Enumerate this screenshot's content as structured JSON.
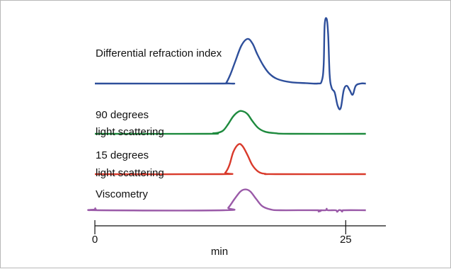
{
  "chart_data": {
    "type": "line",
    "xlabel": "min",
    "x_ticks": [
      0,
      25
    ],
    "xlim": [
      0,
      29
    ],
    "grid": false,
    "series": [
      {
        "name": "Differential refraction index",
        "color": "#2e4f9b",
        "points": [
          [
            0,
            0
          ],
          [
            12.8,
            0
          ],
          [
            13.1,
            0.02
          ],
          [
            13.5,
            0.2
          ],
          [
            14,
            0.5
          ],
          [
            14.6,
            0.85
          ],
          [
            15.2,
            1.0
          ],
          [
            15.7,
            0.9
          ],
          [
            16.2,
            0.65
          ],
          [
            16.8,
            0.4
          ],
          [
            17.4,
            0.22
          ],
          [
            18.2,
            0.1
          ],
          [
            19.5,
            0.03
          ],
          [
            21,
            0.01
          ],
          [
            22.2,
            0
          ],
          [
            22.6,
            0.05
          ],
          [
            22.8,
            0.4
          ],
          [
            22.9,
            1.3
          ],
          [
            23.1,
            1.45
          ],
          [
            23.25,
            1.1
          ],
          [
            23.4,
            0.2
          ],
          [
            23.6,
            -0.1
          ],
          [
            23.9,
            -0.2
          ],
          [
            24.2,
            -0.5
          ],
          [
            24.5,
            -0.55
          ],
          [
            24.8,
            -0.15
          ],
          [
            25.1,
            -0.05
          ],
          [
            25.4,
            -0.15
          ],
          [
            25.7,
            -0.25
          ],
          [
            26,
            -0.05
          ],
          [
            26.5,
            0
          ],
          [
            27,
            0
          ]
        ]
      },
      {
        "name": "90 degrees light scattering",
        "color": "#1e8a3e",
        "points": [
          [
            0,
            0
          ],
          [
            11.2,
            0
          ],
          [
            11.8,
            0.02
          ],
          [
            12.3,
            0.04
          ],
          [
            12.8,
            0.12
          ],
          [
            13.3,
            0.35
          ],
          [
            13.8,
            0.62
          ],
          [
            14.3,
            0.78
          ],
          [
            14.7,
            0.8
          ],
          [
            15.2,
            0.7
          ],
          [
            15.7,
            0.45
          ],
          [
            16.3,
            0.2
          ],
          [
            17,
            0.07
          ],
          [
            18,
            0.02
          ],
          [
            19.5,
            0
          ],
          [
            27,
            0
          ]
        ]
      },
      {
        "name": "15 degrees light scattering",
        "color": "#d93a2b",
        "points": [
          [
            0,
            0
          ],
          [
            12.6,
            0
          ],
          [
            13,
            0.05
          ],
          [
            13.4,
            0.3
          ],
          [
            13.8,
            0.75
          ],
          [
            14.3,
            1.0
          ],
          [
            14.7,
            0.95
          ],
          [
            15.2,
            0.65
          ],
          [
            15.7,
            0.3
          ],
          [
            16.3,
            0.08
          ],
          [
            17,
            0.01
          ],
          [
            18,
            0
          ],
          [
            27,
            0
          ]
        ]
      },
      {
        "name": "Viscometry",
        "color": "#9a5aa8",
        "points": [
          [
            0,
            0.12
          ],
          [
            0.1,
            0.04
          ],
          [
            0.4,
            0
          ],
          [
            12.8,
            0
          ],
          [
            13.3,
            0.12
          ],
          [
            13.9,
            0.5
          ],
          [
            14.5,
            0.85
          ],
          [
            15,
            0.95
          ],
          [
            15.5,
            0.85
          ],
          [
            16.1,
            0.5
          ],
          [
            16.7,
            0.18
          ],
          [
            17.5,
            0.04
          ],
          [
            18.5,
            0
          ],
          [
            22.2,
            0
          ],
          [
            22.3,
            -0.06
          ],
          [
            22.45,
            0
          ],
          [
            23,
            0
          ],
          [
            23.1,
            0.07
          ],
          [
            23.2,
            0
          ],
          [
            24,
            0
          ],
          [
            24.15,
            -0.07
          ],
          [
            24.3,
            0
          ],
          [
            24.5,
            0
          ],
          [
            24.65,
            -0.06
          ],
          [
            24.8,
            0
          ],
          [
            27,
            0
          ]
        ]
      }
    ]
  }
}
